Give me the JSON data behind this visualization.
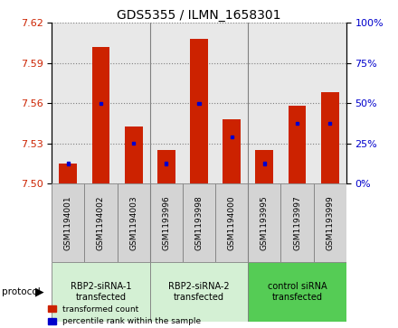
{
  "title": "GDS5355 / ILMN_1658301",
  "samples": [
    "GSM1194001",
    "GSM1194002",
    "GSM1194003",
    "GSM1193996",
    "GSM1193998",
    "GSM1194000",
    "GSM1193995",
    "GSM1193997",
    "GSM1193999"
  ],
  "red_values": [
    7.515,
    7.602,
    7.543,
    7.525,
    7.608,
    7.548,
    7.525,
    7.558,
    7.568
  ],
  "blue_values": [
    7.515,
    7.56,
    7.53,
    7.515,
    7.56,
    7.535,
    7.515,
    7.545,
    7.545
  ],
  "ymin": 7.5,
  "ymax": 7.62,
  "y_ticks": [
    7.5,
    7.53,
    7.56,
    7.59,
    7.62
  ],
  "y2min": 0,
  "y2max": 100,
  "y2_ticks": [
    0,
    25,
    50,
    75,
    100
  ],
  "groups": [
    {
      "label": "RBP2-siRNA-1\ntransfected",
      "start": 0,
      "end": 3,
      "color": "#d4f0d4"
    },
    {
      "label": "RBP2-siRNA-2\ntransfected",
      "start": 3,
      "end": 6,
      "color": "#d4f0d4"
    },
    {
      "label": "control siRNA\ntransfected",
      "start": 6,
      "end": 9,
      "color": "#55cc55"
    }
  ],
  "bar_color": "#cc2200",
  "blue_color": "#0000cc",
  "bar_width": 0.55,
  "plot_bg_color": "#e8e8e8",
  "sample_box_color": "#d4d4d4",
  "group_dividers": [
    2.5,
    5.5
  ]
}
